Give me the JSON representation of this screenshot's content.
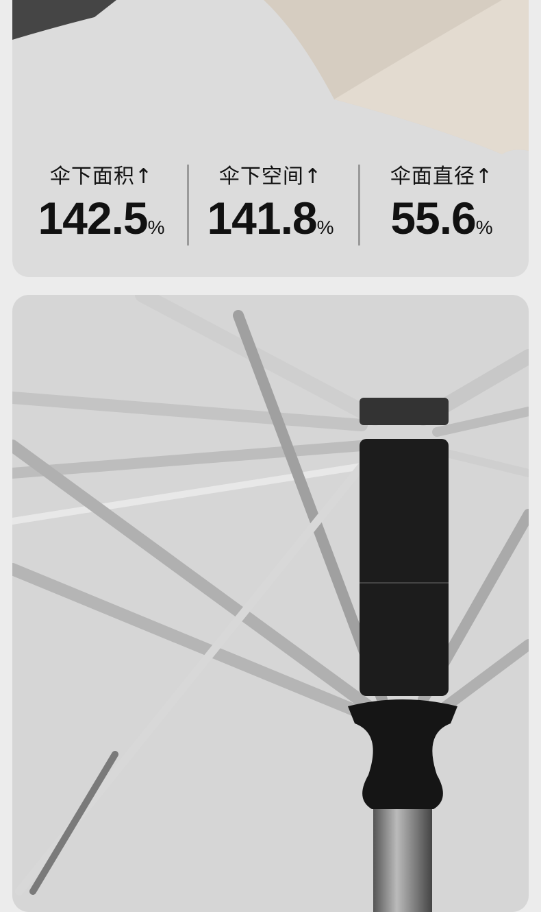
{
  "stats": [
    {
      "label": "伞下面积",
      "arrow": "↑",
      "value": "142.5",
      "unit": "%"
    },
    {
      "label": "伞下空间",
      "arrow": "↑",
      "value": "141.8",
      "unit": "%"
    },
    {
      "label": "伞面直径",
      "arrow": "↑",
      "value": "55.6",
      "unit": "%"
    }
  ],
  "colors": {
    "background": "#ececec",
    "card": "#dcdcdc",
    "text": "#111111",
    "canopy_beige": "#d6cdc1",
    "canopy_dark": "#454545"
  }
}
